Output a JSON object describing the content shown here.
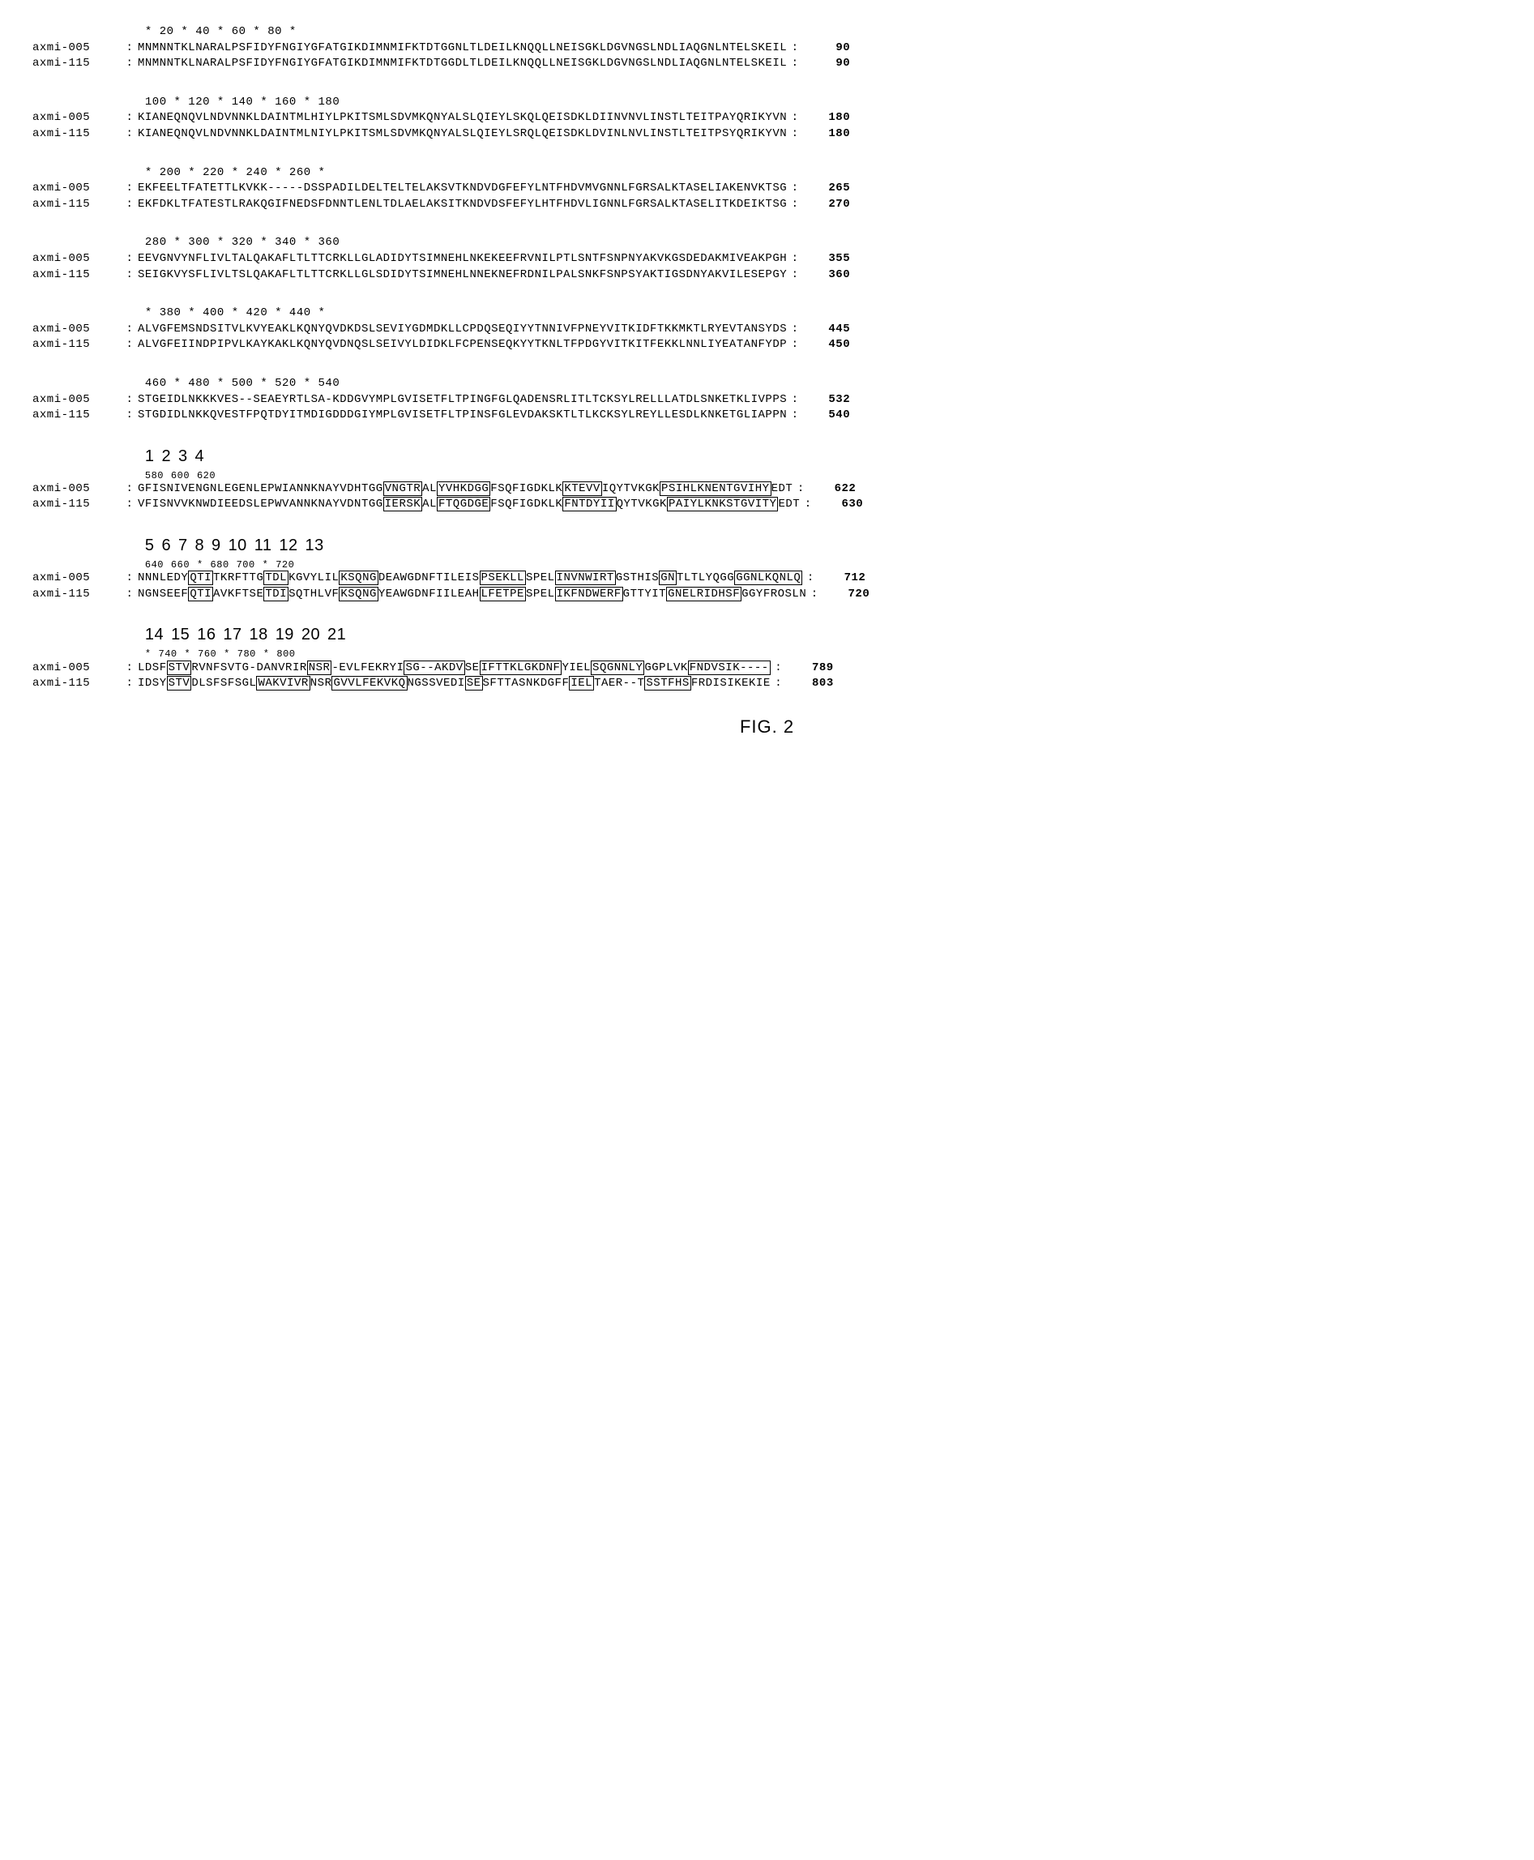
{
  "figure_label": "FIG. 2",
  "font": {
    "family": "Courier New",
    "size_pt": 14,
    "color": "#000000"
  },
  "colors": {
    "background": "#ffffff",
    "text": "#000000",
    "box_border": "#000000"
  },
  "seq_ids": [
    "axmi-005",
    "axmi-115"
  ],
  "blocks": [
    {
      "ruler": "          *        20         *        40         *        60         *        80         *",
      "rows": [
        {
          "id": "axmi-005",
          "seq": "MNMNNTKLNARALPSFIDYFNGIYGFATGIKDIMNMIFKTDTGGNLTLDEILKNQQLLNEISGKLDGVNGSLNDLIAQGNLNTELSKEIL",
          "count": 90
        },
        {
          "id": "axmi-115",
          "seq": "MNMNNTKLNARALPSFIDYFNGIYGFATGIKDIMNMIFKTDTGGDLTLDEILKNQQLLNEISGKLDGVNGSLNDLIAQGNLNTELSKEIL",
          "count": 90
        }
      ],
      "segment_numbers": null
    },
    {
      "ruler": "       100         *       120         *       140         *       160         *       180",
      "rows": [
        {
          "id": "axmi-005",
          "seq": "KIANEQNQVLNDVNNKLDAINTMLHIYLPKITSMLSDVMKQNYALSLQIEYLSKQLQEISDKLDIINVNVLINSTLTEITPAYQRIKYVN",
          "count": 180
        },
        {
          "id": "axmi-115",
          "seq": "KIANEQNQVLNDVNNKLDAINTMLNIYLPKITSMLSDVMKQNYALSLQIEYLSRQLQEISDKLDVINLNVLINSTLTEITPSYQRIKYVN",
          "count": 180
        }
      ],
      "segment_numbers": null
    },
    {
      "ruler": "         *       200         *       220         *       240         *       260         *",
      "rows": [
        {
          "id": "axmi-005",
          "seq": "EKFEELTFATETTLKVKK-----DSSPADILDELTELTELAKSVTKNDVDGFEFYLNTFHDVMVGNNLFGRSALKTASELIAKENVKTSG",
          "count": 265
        },
        {
          "id": "axmi-115",
          "seq": "EKFDKLTFATESTLRAKQGIFNEDSFDNNTLENLTDLAELAKSITKNDVDSFEFYLHTFHDVLIGNNLFGRSALKTASELITKDEIKTSG",
          "count": 270
        }
      ],
      "segment_numbers": null
    },
    {
      "ruler": "       280         *       300         *       320         *       340         *       360",
      "rows": [
        {
          "id": "axmi-005",
          "seq": "EEVGNVYNFLIVLTALQAKAFLTLTTCRKLLGLADIDYTSIMNEHLNKEKEEFRVNILPTLSNTFSNPNYAKVKGSDEDAKMIVEAKPGH",
          "count": 355
        },
        {
          "id": "axmi-115",
          "seq": "SEIGKVYSFLIVLTSLQAKAFLTLTTCRKLLGLSDIDYTSIMNEHLNNEKNEFRDNILPALSNKFSNPSYAKTIGSDNYAKVILESEPGY",
          "count": 360
        }
      ],
      "segment_numbers": null
    },
    {
      "ruler": "         *       380         *       400         *       420         *       440         *",
      "rows": [
        {
          "id": "axmi-005",
          "seq": "ALVGFEMSNDSITVLKVYEAKLKQNYQVDKDSLSEVIYGDMDKLLCPDQSEQIYYTNNIVFPNEYVITKIDFTKKMKTLRYEVTANSYDS",
          "count": 445
        },
        {
          "id": "axmi-115",
          "seq": "ALVGFEIINDPIPVLKAYKAKLKQNYQVDNQSLSEIVYLDIDKLFCPENSEQKYYTKNLTFPDGYVITKITFEKKLNNLIYEATANFYDP",
          "count": 450
        }
      ],
      "segment_numbers": null
    },
    {
      "ruler": "       460         *       480         *       500         *       520         *       540",
      "rows": [
        {
          "id": "axmi-005",
          "seq": "STGEIDLNKKKVES--SEAEYRTLSA-KDDGVYMPLGVISETFLTPINGFGLQADENSRLITLTCKSYLRELLLATDLSNKETKLIVPPS",
          "count": 532
        },
        {
          "id": "axmi-115",
          "seq": "STGDIDLNKKQVESTFPQTDYITMDIGDDDGIYMPLGVISETFLTPINSFGLEVDAKSKTLTLKCKSYLREYLLESDLKNKETGLIAPPN",
          "count": 540
        }
      ],
      "segment_numbers": null
    },
    {
      "ruler": "         *       560         *       580         *       600         *       620         *",
      "rows": [
        {
          "id": "axmi-005",
          "seq": "GFISNIVENGNLEGENLEPWIANNKNAYVDHTGG|VNGTR|AL|YVHKDGG|FSQFIGDKLK|KTEVV|IQYTVKGK|PSIHLKNENTGVIHY|EDT",
          "count": 622,
          "boxes": [
            [
              34,
              39
            ],
            [
              41,
              42
            ],
            [
              50,
              60
            ],
            [
              65,
              69
            ],
            [
              78,
              92
            ]
          ]
        },
        {
          "id": "axmi-115",
          "seq": "VFISNVVKNWDIEEDSLEPWVANNKNAYVDNTGG|IERSK|AL|FTQGDGE|FSQFIGDKLK|FNTDYII|QYTVKGK|PAIYLKNKSTGVITY|EDT",
          "count": 630,
          "boxes": [
            [
              34,
              39
            ],
            [
              41,
              42
            ],
            [
              50,
              60
            ],
            [
              65,
              71
            ],
            [
              79,
              93
            ]
          ]
        }
      ],
      "segment_numbers": {
        "labels": [
          "1",
          "2",
          "3",
          "4"
        ],
        "sublabels": [
          "580",
          "",
          "600",
          "620"
        ],
        "positions_ch": [
          34,
          43,
          62,
          79
        ]
      }
    },
    {
      "ruler": "       640         *       660         *       680         *       700         *       720",
      "rows": [
        {
          "id": "axmi-005",
          "seq": "NNNLEDY|QTI|TKRFTTG|TDL|KGVYLIL|KSQNG|DEAWGDNFTILEIS|PSEKLL|SPEL|INVNWIRT|GSTHIS|GN|TLTLYQGG|GGNLKQNLQ",
          "count": 712,
          "boxes": [
            [
              0,
              6
            ],
            [
              10,
              16
            ],
            [
              20,
              26
            ],
            [
              32,
              45
            ],
            [
              52,
              55
            ],
            [
              64,
              69
            ],
            [
              72,
              79
            ]
          ]
        },
        {
          "id": "axmi-115",
          "seq": "NGNSEEF|QTI|AVKFTSE|TDI|SQTHLVF|KSQNG|YEAWGDNFIILEAH|LFETPE|SPEL|IKFNDWERF|GTTYIT|GNELRIDHSF|GGYFROSLN",
          "count": 720,
          "boxes": [
            [
              0,
              6
            ],
            [
              10,
              16
            ],
            [
              20,
              26
            ],
            [
              32,
              45
            ],
            [
              52,
              55
            ],
            [
              64,
              69
            ],
            [
              76,
              85
            ]
          ]
        }
      ],
      "segment_numbers": {
        "labels": [
          "5",
          "6",
          "7",
          "8",
          "9",
          "10",
          "11",
          "12",
          "13"
        ],
        "sublabels": [
          "640",
          "",
          "660",
          "*",
          "680",
          "",
          "700",
          "*",
          "720"
        ],
        "positions_ch": [
          3,
          12,
          22,
          32,
          46,
          56,
          63,
          72,
          82
        ]
      }
    },
    {
      "ruler": "         *       740         *       760         *       780         *       800",
      "rows": [
        {
          "id": "axmi-005",
          "seq": "LDSF|STV|RVNFSVTG-DANVRIR|NSR|-EVLFEKRYI|SG--AKDV|SE|IFTTKLGKDNF|YIEL|SQGNNLY|GGPLVK|FNDVSIK----",
          "count": 789,
          "boxes": [
            [
              0,
              3
            ],
            [
              7,
              22
            ],
            [
              26,
              35
            ],
            [
              44,
              45
            ],
            [
              57,
              60
            ],
            [
              68,
              73
            ]
          ]
        },
        {
          "id": "axmi-115",
          "seq": "IDSY|STV|DLSFSFSGL|WAKVIVR|NSR|GVVLFEKVKQ|NGSSVEDI|SE|SFTTASNKDGFF|IEL|TAER--T|SSTFHS|FRDISIKEKIE",
          "count": 803,
          "boxes": [
            [
              0,
              3
            ],
            [
              7,
              15
            ],
            [
              23,
              25
            ],
            [
              36,
              43
            ],
            [
              46,
              57
            ],
            [
              61,
              67
            ],
            [
              75,
              85
            ]
          ]
        }
      ],
      "segment_numbers": {
        "labels": [
          "14",
          "15",
          "16",
          "17",
          "18",
          "19",
          "20",
          "21"
        ],
        "sublabels": [
          "*",
          "740",
          "*",
          "760",
          "*",
          "780",
          "*",
          "800"
        ],
        "positions_ch": [
          3,
          14,
          26,
          37,
          48,
          58,
          67,
          77
        ]
      }
    }
  ]
}
